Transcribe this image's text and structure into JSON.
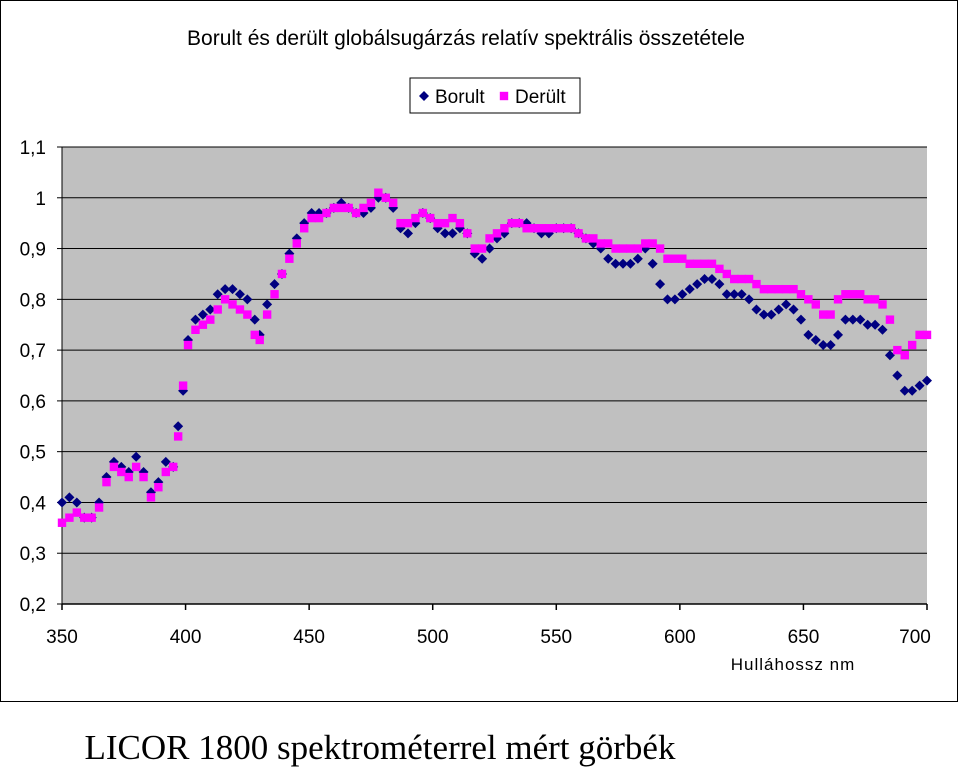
{
  "caption": "LICOR 1800 spektrométerrel mért görbék",
  "chart_data": {
    "type": "scatter",
    "title": "Borult és derült globálsugárzás relatív spektrális összetétele",
    "xlabel": "Hulláhossz nm",
    "ylabel": "",
    "xlim": [
      350,
      700
    ],
    "ylim": [
      0.2,
      1.1
    ],
    "x_ticks": [
      350,
      400,
      450,
      500,
      550,
      600,
      650,
      700
    ],
    "x_tick_labels": [
      "350",
      "400",
      "450",
      "500",
      "550",
      "600",
      "650",
      "700"
    ],
    "y_ticks": [
      0.2,
      0.3,
      0.4,
      0.5,
      0.6,
      0.7,
      0.8,
      0.9,
      1.0,
      1.1
    ],
    "y_tick_labels": [
      "0,2",
      "0,3",
      "0,4",
      "0,5",
      "0,6",
      "0,7",
      "0,8",
      "0,9",
      "1",
      "1,1"
    ],
    "grid": "horizontal",
    "plot_background": "#c0c0c0",
    "legend_position": "top-center",
    "series": [
      {
        "name": "Borult",
        "color": "#000080",
        "marker": "diamond",
        "points": [
          [
            350,
            0.4
          ],
          [
            353,
            0.41
          ],
          [
            356,
            0.4
          ],
          [
            359,
            0.37
          ],
          [
            362,
            0.37
          ],
          [
            365,
            0.4
          ],
          [
            368,
            0.45
          ],
          [
            371,
            0.48
          ],
          [
            374,
            0.47
          ],
          [
            377,
            0.46
          ],
          [
            380,
            0.49
          ],
          [
            383,
            0.46
          ],
          [
            386,
            0.42
          ],
          [
            389,
            0.44
          ],
          [
            392,
            0.48
          ],
          [
            395,
            0.47
          ],
          [
            397,
            0.55
          ],
          [
            399,
            0.62
          ],
          [
            401,
            0.72
          ],
          [
            404,
            0.76
          ],
          [
            407,
            0.77
          ],
          [
            410,
            0.78
          ],
          [
            413,
            0.81
          ],
          [
            416,
            0.82
          ],
          [
            419,
            0.82
          ],
          [
            422,
            0.81
          ],
          [
            425,
            0.8
          ],
          [
            428,
            0.76
          ],
          [
            430,
            0.73
          ],
          [
            433,
            0.79
          ],
          [
            436,
            0.83
          ],
          [
            439,
            0.85
          ],
          [
            442,
            0.89
          ],
          [
            445,
            0.92
          ],
          [
            448,
            0.95
          ],
          [
            451,
            0.97
          ],
          [
            454,
            0.97
          ],
          [
            457,
            0.97
          ],
          [
            460,
            0.98
          ],
          [
            463,
            0.99
          ],
          [
            466,
            0.98
          ],
          [
            469,
            0.97
          ],
          [
            472,
            0.97
          ],
          [
            475,
            0.98
          ],
          [
            478,
            1.0
          ],
          [
            481,
            1.0
          ],
          [
            484,
            0.98
          ],
          [
            487,
            0.94
          ],
          [
            490,
            0.93
          ],
          [
            493,
            0.95
          ],
          [
            496,
            0.97
          ],
          [
            499,
            0.96
          ],
          [
            502,
            0.94
          ],
          [
            505,
            0.93
          ],
          [
            508,
            0.93
          ],
          [
            511,
            0.94
          ],
          [
            514,
            0.93
          ],
          [
            517,
            0.89
          ],
          [
            520,
            0.88
          ],
          [
            523,
            0.9
          ],
          [
            526,
            0.92
          ],
          [
            529,
            0.93
          ],
          [
            532,
            0.95
          ],
          [
            535,
            0.95
          ],
          [
            538,
            0.95
          ],
          [
            541,
            0.94
          ],
          [
            544,
            0.93
          ],
          [
            547,
            0.93
          ],
          [
            550,
            0.94
          ],
          [
            553,
            0.94
          ],
          [
            556,
            0.94
          ],
          [
            559,
            0.93
          ],
          [
            562,
            0.92
          ],
          [
            565,
            0.91
          ],
          [
            568,
            0.9
          ],
          [
            571,
            0.88
          ],
          [
            574,
            0.87
          ],
          [
            577,
            0.87
          ],
          [
            580,
            0.87
          ],
          [
            583,
            0.88
          ],
          [
            586,
            0.9
          ],
          [
            589,
            0.87
          ],
          [
            592,
            0.83
          ],
          [
            595,
            0.8
          ],
          [
            598,
            0.8
          ],
          [
            601,
            0.81
          ],
          [
            604,
            0.82
          ],
          [
            607,
            0.83
          ],
          [
            610,
            0.84
          ],
          [
            613,
            0.84
          ],
          [
            616,
            0.83
          ],
          [
            619,
            0.81
          ],
          [
            622,
            0.81
          ],
          [
            625,
            0.81
          ],
          [
            628,
            0.8
          ],
          [
            631,
            0.78
          ],
          [
            634,
            0.77
          ],
          [
            637,
            0.77
          ],
          [
            640,
            0.78
          ],
          [
            643,
            0.79
          ],
          [
            646,
            0.78
          ],
          [
            649,
            0.76
          ],
          [
            652,
            0.73
          ],
          [
            655,
            0.72
          ],
          [
            658,
            0.71
          ],
          [
            661,
            0.71
          ],
          [
            664,
            0.73
          ],
          [
            667,
            0.76
          ],
          [
            670,
            0.76
          ],
          [
            673,
            0.76
          ],
          [
            676,
            0.75
          ],
          [
            679,
            0.75
          ],
          [
            682,
            0.74
          ],
          [
            685,
            0.69
          ],
          [
            688,
            0.65
          ],
          [
            691,
            0.62
          ],
          [
            694,
            0.62
          ],
          [
            697,
            0.63
          ],
          [
            700,
            0.64
          ]
        ]
      },
      {
        "name": "Derült",
        "color": "#ff00ff",
        "marker": "square",
        "points": [
          [
            350,
            0.36
          ],
          [
            353,
            0.37
          ],
          [
            356,
            0.38
          ],
          [
            359,
            0.37
          ],
          [
            362,
            0.37
          ],
          [
            365,
            0.39
          ],
          [
            368,
            0.44
          ],
          [
            371,
            0.47
          ],
          [
            374,
            0.46
          ],
          [
            377,
            0.45
          ],
          [
            380,
            0.47
          ],
          [
            383,
            0.45
          ],
          [
            386,
            0.41
          ],
          [
            389,
            0.43
          ],
          [
            392,
            0.46
          ],
          [
            395,
            0.47
          ],
          [
            397,
            0.53
          ],
          [
            399,
            0.63
          ],
          [
            401,
            0.71
          ],
          [
            404,
            0.74
          ],
          [
            407,
            0.75
          ],
          [
            410,
            0.76
          ],
          [
            413,
            0.78
          ],
          [
            416,
            0.8
          ],
          [
            419,
            0.79
          ],
          [
            422,
            0.78
          ],
          [
            425,
            0.77
          ],
          [
            428,
            0.73
          ],
          [
            430,
            0.72
          ],
          [
            433,
            0.77
          ],
          [
            436,
            0.81
          ],
          [
            439,
            0.85
          ],
          [
            442,
            0.88
          ],
          [
            445,
            0.91
          ],
          [
            448,
            0.94
          ],
          [
            451,
            0.96
          ],
          [
            454,
            0.96
          ],
          [
            457,
            0.97
          ],
          [
            460,
            0.98
          ],
          [
            463,
            0.98
          ],
          [
            466,
            0.98
          ],
          [
            469,
            0.97
          ],
          [
            472,
            0.98
          ],
          [
            475,
            0.99
          ],
          [
            478,
            1.01
          ],
          [
            481,
            1.0
          ],
          [
            484,
            0.99
          ],
          [
            487,
            0.95
          ],
          [
            490,
            0.95
          ],
          [
            493,
            0.96
          ],
          [
            496,
            0.97
          ],
          [
            499,
            0.96
          ],
          [
            502,
            0.95
          ],
          [
            505,
            0.95
          ],
          [
            508,
            0.96
          ],
          [
            511,
            0.95
          ],
          [
            514,
            0.93
          ],
          [
            517,
            0.9
          ],
          [
            520,
            0.9
          ],
          [
            523,
            0.92
          ],
          [
            526,
            0.93
          ],
          [
            529,
            0.94
          ],
          [
            532,
            0.95
          ],
          [
            535,
            0.95
          ],
          [
            538,
            0.94
          ],
          [
            541,
            0.94
          ],
          [
            544,
            0.94
          ],
          [
            547,
            0.94
          ],
          [
            550,
            0.94
          ],
          [
            553,
            0.94
          ],
          [
            556,
            0.94
          ],
          [
            559,
            0.93
          ],
          [
            562,
            0.92
          ],
          [
            565,
            0.92
          ],
          [
            568,
            0.91
          ],
          [
            571,
            0.91
          ],
          [
            574,
            0.9
          ],
          [
            577,
            0.9
          ],
          [
            580,
            0.9
          ],
          [
            583,
            0.9
          ],
          [
            586,
            0.91
          ],
          [
            589,
            0.91
          ],
          [
            592,
            0.9
          ],
          [
            595,
            0.88
          ],
          [
            598,
            0.88
          ],
          [
            601,
            0.88
          ],
          [
            604,
            0.87
          ],
          [
            607,
            0.87
          ],
          [
            610,
            0.87
          ],
          [
            613,
            0.87
          ],
          [
            616,
            0.86
          ],
          [
            619,
            0.85
          ],
          [
            622,
            0.84
          ],
          [
            625,
            0.84
          ],
          [
            628,
            0.84
          ],
          [
            631,
            0.83
          ],
          [
            634,
            0.82
          ],
          [
            637,
            0.82
          ],
          [
            640,
            0.82
          ],
          [
            643,
            0.82
          ],
          [
            646,
            0.82
          ],
          [
            649,
            0.81
          ],
          [
            652,
            0.8
          ],
          [
            655,
            0.79
          ],
          [
            658,
            0.77
          ],
          [
            661,
            0.77
          ],
          [
            664,
            0.8
          ],
          [
            667,
            0.81
          ],
          [
            670,
            0.81
          ],
          [
            673,
            0.81
          ],
          [
            676,
            0.8
          ],
          [
            679,
            0.8
          ],
          [
            682,
            0.79
          ],
          [
            685,
            0.76
          ],
          [
            688,
            0.7
          ],
          [
            691,
            0.69
          ],
          [
            694,
            0.71
          ],
          [
            697,
            0.73
          ],
          [
            700,
            0.73
          ]
        ]
      }
    ]
  }
}
